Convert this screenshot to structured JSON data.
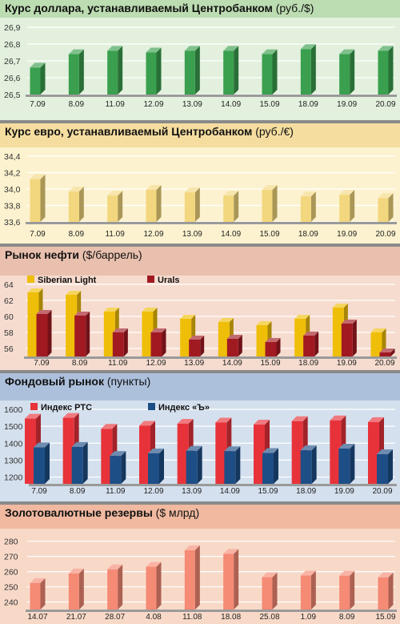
{
  "colors": {
    "green_bg": "#e2f0dd",
    "green_header": "#bcdcb1",
    "green_bar": "#3a9f4e",
    "euro_bg": "#fcf2cf",
    "euro_header": "#f5dda0",
    "euro_bar": "#f3d77e",
    "oil_bg": "#f6dccf",
    "oil_header": "#e9c0ae",
    "oil_gold": "#efbe08",
    "oil_urals": "#a11a22",
    "stock_bg": "#d4e0ee",
    "stock_header": "#acc0dc",
    "stock_red": "#e8323a",
    "stock_blue": "#1e4e86",
    "gold_bg": "#f8d9c8",
    "gold_header": "#f0b9a0",
    "gold_bar": "#f58a75"
  },
  "panels": [
    {
      "title": "Курс доллара, устанавливаемый Центробанком",
      "unit": "(руб./$)",
      "chart_data": {
        "type": "bar",
        "title": "Курс доллара, устанавливаемый Центробанком (руб./$)",
        "categories": [
          "7.09",
          "8.09",
          "11.09",
          "12.09",
          "13.09",
          "14.09",
          "15.09",
          "18.09",
          "19.09",
          "20.09"
        ],
        "yticks": [
          "26,5",
          "26,6",
          "26,7",
          "26,8",
          "26,9"
        ],
        "ylim": [
          26.5,
          26.9
        ],
        "series": [
          {
            "values": [
              26.66,
              26.74,
              26.76,
              26.75,
              26.76,
              26.76,
              26.74,
              26.77,
              26.74,
              26.76
            ]
          }
        ]
      }
    },
    {
      "title": "Курс евро, устанавливаемый Центробанком",
      "unit": "(руб./€)",
      "chart_data": {
        "type": "bar",
        "title": "Курс евро, устанавливаемый Центробанком (руб./€)",
        "categories": [
          "7.09",
          "8.09",
          "11.09",
          "12.09",
          "13.09",
          "14.09",
          "15.09",
          "18.09",
          "19.09",
          "20.09"
        ],
        "yticks": [
          "33,6",
          "33,8",
          "34,0",
          "34,2",
          "34,4"
        ],
        "ylim": [
          33.6,
          34.4
        ],
        "series": [
          {
            "values": [
              34.12,
              33.97,
              33.92,
              33.99,
              33.96,
              33.92,
              33.99,
              33.91,
              33.93,
              33.89
            ]
          }
        ]
      }
    },
    {
      "title": "Рынок нефти",
      "unit": "($/баррель)",
      "chart_data": {
        "type": "bar",
        "title": "Рынок нефти ($/баррель)",
        "categories": [
          "7.09",
          "8.09",
          "11.09",
          "12.09",
          "13.09",
          "14.09",
          "15.09",
          "18.09",
          "19.09",
          "20.09"
        ],
        "yticks": [
          "56",
          "58",
          "60",
          "62",
          "64"
        ],
        "ylim": [
          55,
          64
        ],
        "legend": "top-left",
        "series": [
          {
            "name": "Siberian Light",
            "values": [
              63.0,
              62.7,
              60.6,
              60.6,
              59.7,
              59.3,
              58.9,
              59.7,
              61.1,
              58.0
            ]
          },
          {
            "name": "Urals",
            "values": [
              60.3,
              60.1,
              58.0,
              58.0,
              57.1,
              57.2,
              56.8,
              57.6,
              59.1,
              55.5
            ]
          }
        ]
      }
    },
    {
      "title": "Фондовый рынок",
      "unit": "(пункты)",
      "chart_data": {
        "type": "bar",
        "title": "Фондовый рынок (пункты)",
        "categories": [
          "7.09",
          "8.09",
          "11.09",
          "12.09",
          "13.09",
          "14.09",
          "15.09",
          "18.09",
          "19.09",
          "20.09"
        ],
        "yticks": [
          "1200",
          "1300",
          "1400",
          "1500",
          "1600"
        ],
        "ylim": [
          1160,
          1600
        ],
        "legend": "top-left",
        "series": [
          {
            "name": "Индекс РТС",
            "values": [
              1545,
              1550,
              1485,
              1503,
              1515,
              1522,
              1510,
              1530,
              1535,
              1525
            ]
          },
          {
            "name": "Индекс «Ъ»",
            "values": [
              1375,
              1378,
              1325,
              1340,
              1355,
              1353,
              1342,
              1358,
              1368,
              1335
            ]
          }
        ]
      }
    },
    {
      "title": "Золотовалютные резервы",
      "unit": "($ млрд)",
      "chart_data": {
        "type": "bar",
        "title": "Золотовалютные резервы ($ млрд)",
        "categories": [
          "14.07",
          "21.07",
          "28.07",
          "4.08",
          "11.08",
          "18.08",
          "25.08",
          "1.09",
          "8.09",
          "15.09"
        ],
        "yticks": [
          "240",
          "250",
          "260",
          "270",
          "280"
        ],
        "ylim": [
          235,
          283
        ],
        "series": [
          {
            "values": [
              252.5,
              258.8,
              261.5,
              263.2,
              274.1,
              271.7,
              256.3,
              257.4,
              257.3,
              256.2
            ]
          }
        ]
      }
    }
  ]
}
